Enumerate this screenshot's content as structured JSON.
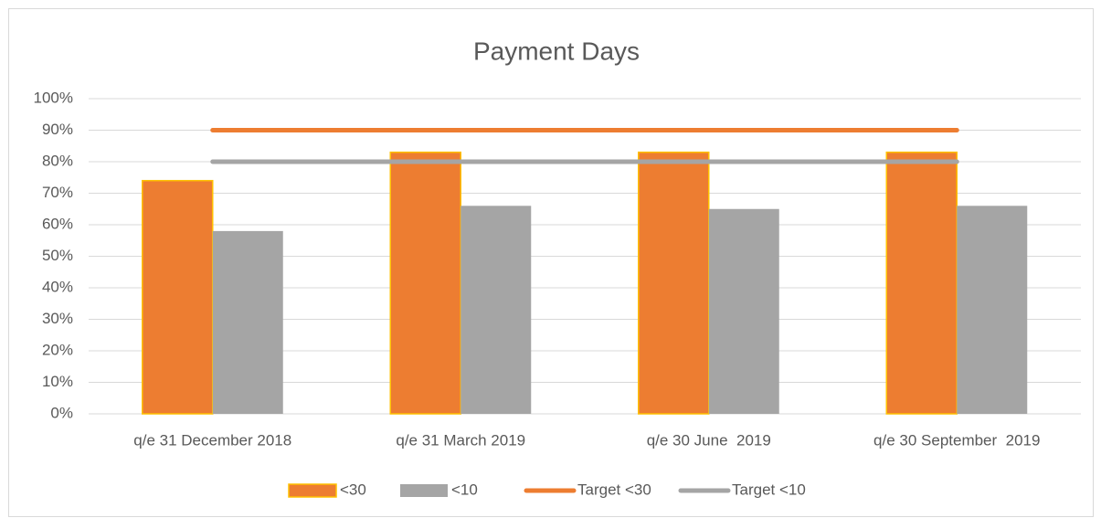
{
  "chart_data": {
    "type": "bar",
    "title": "Payment Days",
    "categories": [
      "q/e 31 December 2018",
      "q/e 31 March 2019",
      "q/e 30 June  2019",
      "q/e 30 September  2019"
    ],
    "series": [
      {
        "name": "<30",
        "type": "bar",
        "color": "#ed7d31",
        "values": [
          74,
          83,
          83,
          83
        ]
      },
      {
        "name": "<10",
        "type": "bar",
        "color": "#a5a5a5",
        "values": [
          58,
          66,
          65,
          66
        ]
      },
      {
        "name": "Target <30",
        "type": "line",
        "color": "#ed7d31",
        "values": [
          90,
          90,
          90,
          90
        ]
      },
      {
        "name": "Target <10",
        "type": "line",
        "color": "#a5a5a5",
        "values": [
          80,
          80,
          80,
          80
        ]
      }
    ],
    "ylim": [
      0,
      100
    ],
    "yticks": [
      {
        "value": 0,
        "label": "0%"
      },
      {
        "value": 10,
        "label": "10%"
      },
      {
        "value": 20,
        "label": "20%"
      },
      {
        "value": 30,
        "label": "30%"
      },
      {
        "value": 40,
        "label": "40%"
      },
      {
        "value": 50,
        "label": "50%"
      },
      {
        "value": 60,
        "label": "60%"
      },
      {
        "value": 70,
        "label": "70%"
      },
      {
        "value": 80,
        "label": "80%"
      },
      {
        "value": 90,
        "label": "90%"
      },
      {
        "value": 100,
        "label": "100%"
      }
    ],
    "grid": true,
    "legend": "bottom"
  }
}
